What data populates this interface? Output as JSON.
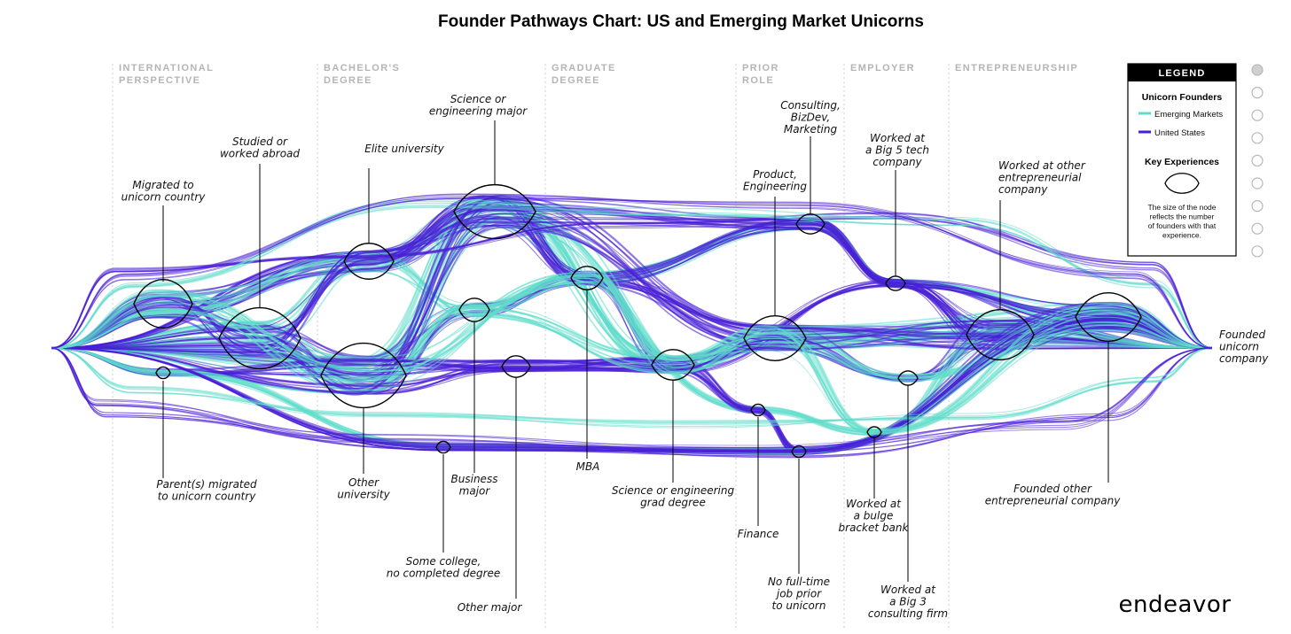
{
  "chart_data": {
    "type": "flow",
    "title": "Founder Pathways Chart: US and Emerging Market Unicorns",
    "stages": [
      [
        "INTERNATIONAL",
        "PERSPECTIVE"
      ],
      [
        "BACHELOR'S",
        "DEGREE"
      ],
      [
        "GRADUATE",
        "DEGREE"
      ],
      [
        "PRIOR",
        "ROLE"
      ],
      [
        "EMPLOYER"
      ],
      [
        "ENTREPRENEURSHIP"
      ]
    ],
    "endpoint": [
      "Founded",
      "unicorn",
      "company"
    ],
    "nodes": [
      {
        "id": "migrated",
        "label": [
          "Migrated to",
          "unicorn country"
        ],
        "size": "large"
      },
      {
        "id": "parents",
        "label": [
          "Parent(s) migrated",
          "to unicorn country"
        ],
        "size": "small"
      },
      {
        "id": "abroad",
        "label": [
          "Studied or",
          "worked abroad"
        ],
        "size": "large"
      },
      {
        "id": "elite",
        "label": [
          "Elite university"
        ],
        "size": "medium"
      },
      {
        "id": "other_uni",
        "label": [
          "Other",
          "university"
        ],
        "size": "large"
      },
      {
        "id": "some_college",
        "label": [
          "Some college,",
          "no completed degree"
        ],
        "size": "small"
      },
      {
        "id": "sci_major",
        "label": [
          "Science or",
          "engineering major"
        ],
        "size": "large"
      },
      {
        "id": "business",
        "label": [
          "Business",
          "major"
        ],
        "size": "medium"
      },
      {
        "id": "other_major",
        "label": [
          "Other major"
        ],
        "size": "medium"
      },
      {
        "id": "mba",
        "label": [
          "MBA"
        ],
        "size": "medium"
      },
      {
        "id": "sci_grad",
        "label": [
          "Science or engineering",
          "grad degree"
        ],
        "size": "medium"
      },
      {
        "id": "product",
        "label": [
          "Product,",
          "Engineering"
        ],
        "size": "large"
      },
      {
        "id": "consulting_role",
        "label": [
          "Consulting,",
          "BizDev,",
          "Marketing"
        ],
        "size": "medium"
      },
      {
        "id": "finance",
        "label": [
          "Finance"
        ],
        "size": "small"
      },
      {
        "id": "no_fulltime",
        "label": [
          "No full-time",
          "job prior",
          "to unicorn"
        ],
        "size": "small"
      },
      {
        "id": "big5",
        "label": [
          "Worked at",
          "a Big 5 tech",
          "company"
        ],
        "size": "small"
      },
      {
        "id": "bulge",
        "label": [
          "Worked at",
          "a bulge",
          "bracket bank"
        ],
        "size": "small"
      },
      {
        "id": "big3",
        "label": [
          "Worked at",
          "a Big 3",
          "consulting firm"
        ],
        "size": "small"
      },
      {
        "id": "other_entre",
        "label": [
          "Worked at other",
          "entrepreneurial",
          "company"
        ],
        "size": "large"
      },
      {
        "id": "founded_other",
        "label": [
          "Founded other",
          "entrepreneurial company"
        ],
        "size": "large"
      }
    ],
    "legend": {
      "title": "LEGEND",
      "group_title": "Unicorn Founders",
      "series": [
        {
          "name": "Emerging Markets",
          "color": "#5fdccb"
        },
        {
          "name": "United States",
          "color": "#4a1fd6"
        }
      ],
      "key_title": "Key Experiences",
      "key_note": [
        "The size of the node",
        "reflects the number",
        "of founders with that",
        "experience."
      ]
    }
  },
  "brand": "endeavor"
}
